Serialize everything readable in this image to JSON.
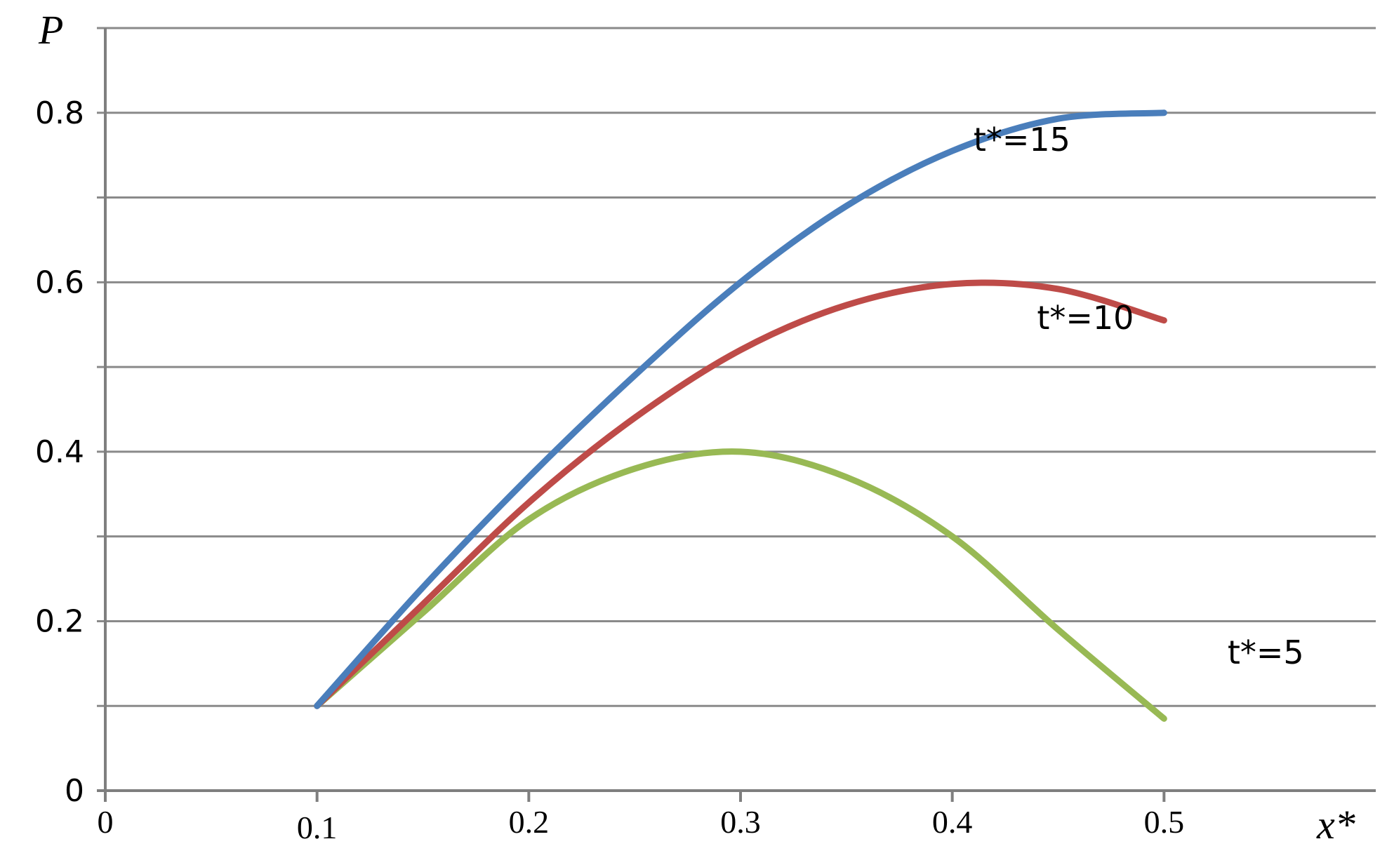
{
  "chart_data": {
    "type": "line",
    "title": "",
    "xlabel": "x*",
    "ylabel": "P",
    "xlim": [
      0,
      0.6
    ],
    "ylim": [
      0,
      0.9
    ],
    "x_ticks": [
      "0",
      "0.1",
      "0.2",
      "0.3",
      "0.4",
      "0.5"
    ],
    "y_ticks": [
      "0",
      "0.2",
      "0.4",
      "0.6",
      "0.8"
    ],
    "y_grid_step": 0.1,
    "grid": true,
    "legend": "none",
    "series": [
      {
        "name": "t*=15",
        "color": "#4a7ebb",
        "x": [
          0.1,
          0.15,
          0.2,
          0.25,
          0.3,
          0.35,
          0.4,
          0.45,
          0.5
        ],
        "y": [
          0.1,
          0.24,
          0.37,
          0.49,
          0.6,
          0.69,
          0.755,
          0.793,
          0.8
        ]
      },
      {
        "name": "t*=10",
        "color": "#be4b48",
        "x": [
          0.1,
          0.15,
          0.2,
          0.25,
          0.3,
          0.35,
          0.4,
          0.45,
          0.5
        ],
        "y": [
          0.1,
          0.22,
          0.34,
          0.44,
          0.52,
          0.573,
          0.598,
          0.592,
          0.555
        ]
      },
      {
        "name": "t*=5",
        "color": "#98b954",
        "x": [
          0.1,
          0.15,
          0.2,
          0.25,
          0.3,
          0.35,
          0.4,
          0.45,
          0.5
        ],
        "y": [
          0.1,
          0.21,
          0.32,
          0.38,
          0.4,
          0.37,
          0.3,
          0.19,
          0.085
        ]
      }
    ],
    "annotations": [
      {
        "text": "t*=15",
        "x": 0.41,
        "y": 0.755
      },
      {
        "text": "t*=10",
        "x": 0.44,
        "y": 0.545
      },
      {
        "text": "t*=5",
        "x": 0.53,
        "y": 0.15
      }
    ]
  }
}
